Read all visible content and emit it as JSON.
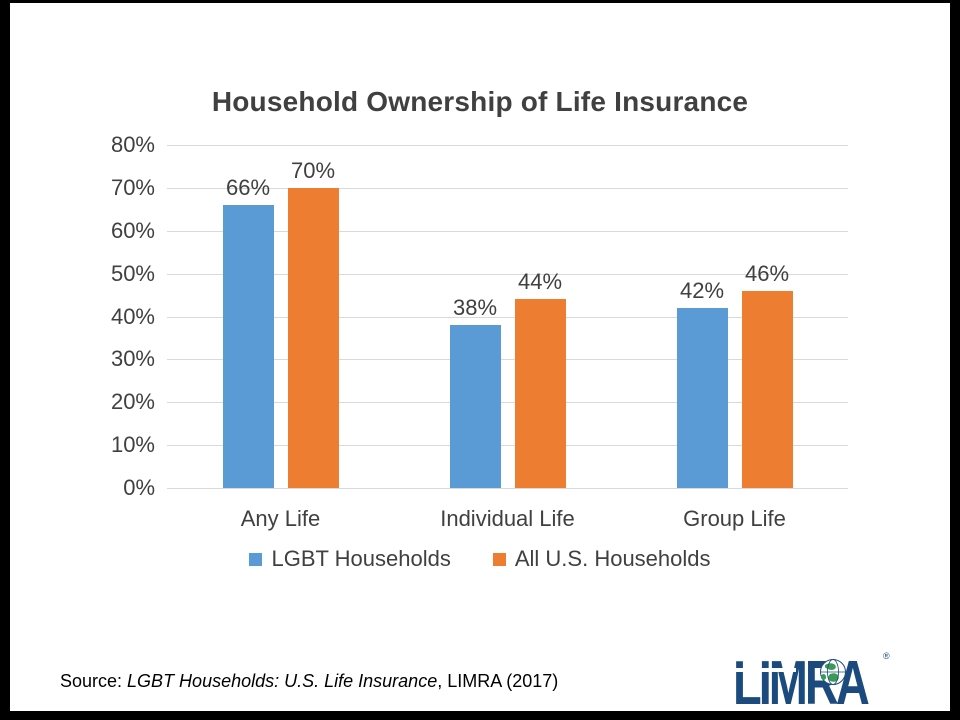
{
  "slide": {
    "title": "Household Ownership of Life Insurance",
    "source": {
      "prefix": "Source: ",
      "italic": "LGBT Households: U.S. Life Insurance",
      "suffix": ", LIMRA (2017)"
    },
    "logo": {
      "text": "LIMRA",
      "registered": "®",
      "navy": "#1B4B7E",
      "globe_green": "#3C9A57"
    }
  },
  "chart_data": {
    "type": "bar",
    "title": "Household Ownership of Life Insurance",
    "categories": [
      "Any Life",
      "Individual Life",
      "Group Life"
    ],
    "series": [
      {
        "name": "LGBT Households",
        "color": "#5B9BD5",
        "values": [
          66,
          38,
          42
        ]
      },
      {
        "name": "All U.S. Households",
        "color": "#ED7D31",
        "values": [
          70,
          44,
          46
        ]
      }
    ],
    "value_suffix": "%",
    "ylim": [
      0,
      80
    ],
    "ytick_step": 10,
    "ytick_labels": [
      "0%",
      "10%",
      "20%",
      "30%",
      "40%",
      "50%",
      "60%",
      "70%",
      "80%"
    ],
    "grid": true,
    "data_labels": true,
    "legend_position": "bottom",
    "text_color": "#404040",
    "gridline_color": "#D9D9D9"
  }
}
